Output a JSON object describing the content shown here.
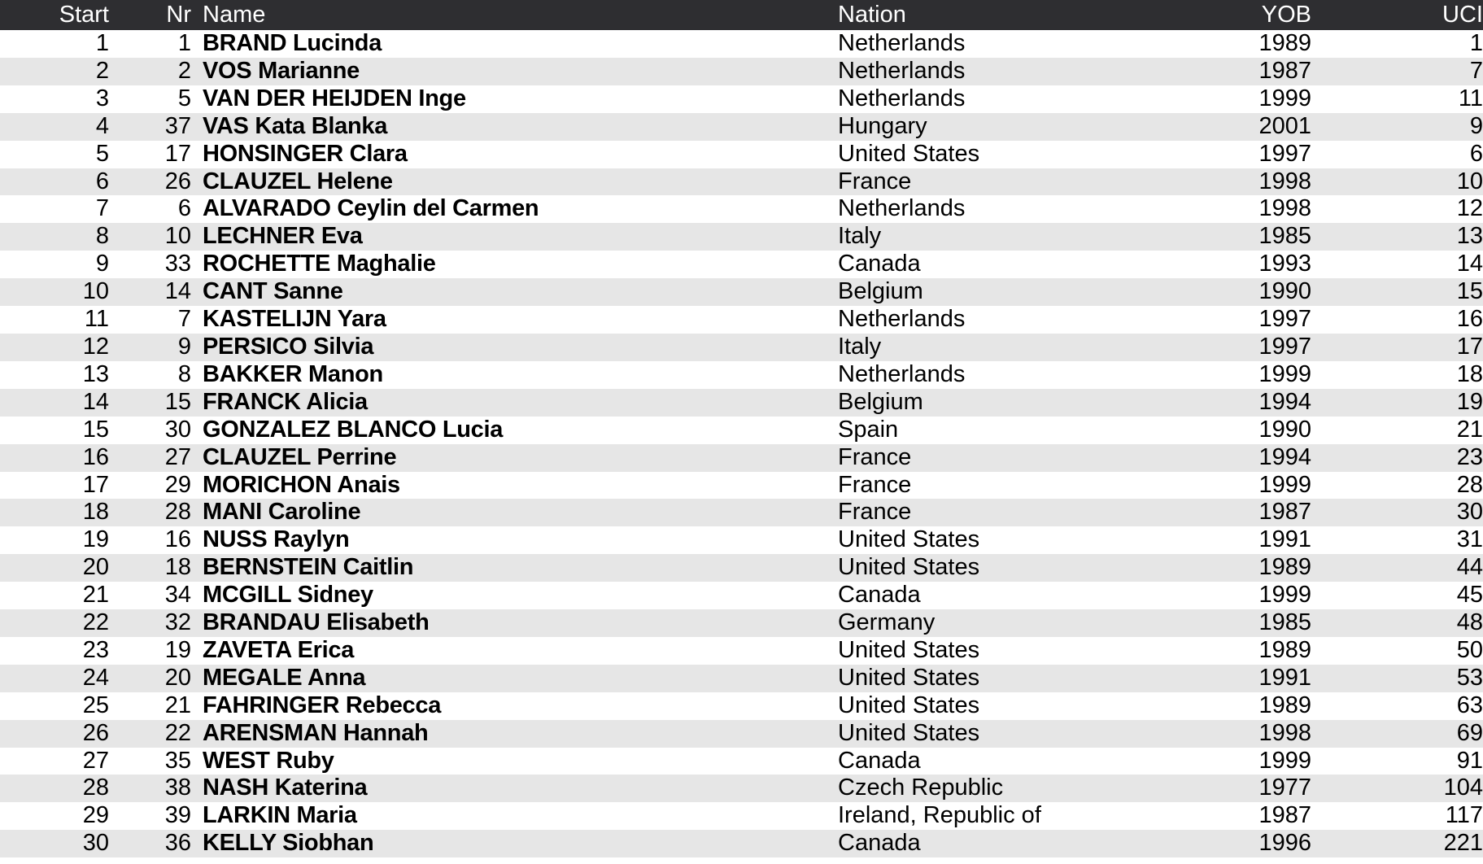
{
  "table": {
    "headers": {
      "start": "Start",
      "nr": "Nr",
      "name": "Name",
      "nation": "Nation",
      "yob": "YOB",
      "uci": "UCI"
    },
    "rows": [
      {
        "start": "1",
        "nr": "1",
        "name": "BRAND Lucinda",
        "nation": "Netherlands",
        "yob": "1989",
        "uci": "1"
      },
      {
        "start": "2",
        "nr": "2",
        "name": "VOS Marianne",
        "nation": "Netherlands",
        "yob": "1987",
        "uci": "7"
      },
      {
        "start": "3",
        "nr": "5",
        "name": "VAN DER HEIJDEN Inge",
        "nation": "Netherlands",
        "yob": "1999",
        "uci": "11"
      },
      {
        "start": "4",
        "nr": "37",
        "name": "VAS Kata Blanka",
        "nation": "Hungary",
        "yob": "2001",
        "uci": "9"
      },
      {
        "start": "5",
        "nr": "17",
        "name": "HONSINGER Clara",
        "nation": "United States",
        "yob": "1997",
        "uci": "6"
      },
      {
        "start": "6",
        "nr": "26",
        "name": "CLAUZEL Helene",
        "nation": "France",
        "yob": "1998",
        "uci": "10"
      },
      {
        "start": "7",
        "nr": "6",
        "name": "ALVARADO Ceylin del Carmen",
        "nation": "Netherlands",
        "yob": "1998",
        "uci": "12"
      },
      {
        "start": "8",
        "nr": "10",
        "name": "LECHNER Eva",
        "nation": "Italy",
        "yob": "1985",
        "uci": "13"
      },
      {
        "start": "9",
        "nr": "33",
        "name": "ROCHETTE Maghalie",
        "nation": "Canada",
        "yob": "1993",
        "uci": "14"
      },
      {
        "start": "10",
        "nr": "14",
        "name": "CANT Sanne",
        "nation": "Belgium",
        "yob": "1990",
        "uci": "15"
      },
      {
        "start": "11",
        "nr": "7",
        "name": "KASTELIJN Yara",
        "nation": "Netherlands",
        "yob": "1997",
        "uci": "16"
      },
      {
        "start": "12",
        "nr": "9",
        "name": "PERSICO Silvia",
        "nation": "Italy",
        "yob": "1997",
        "uci": "17"
      },
      {
        "start": "13",
        "nr": "8",
        "name": "BAKKER Manon",
        "nation": "Netherlands",
        "yob": "1999",
        "uci": "18"
      },
      {
        "start": "14",
        "nr": "15",
        "name": "FRANCK Alicia",
        "nation": "Belgium",
        "yob": "1994",
        "uci": "19"
      },
      {
        "start": "15",
        "nr": "30",
        "name": "GONZALEZ BLANCO Lucia",
        "nation": "Spain",
        "yob": "1990",
        "uci": "21"
      },
      {
        "start": "16",
        "nr": "27",
        "name": "CLAUZEL Perrine",
        "nation": "France",
        "yob": "1994",
        "uci": "23"
      },
      {
        "start": "17",
        "nr": "29",
        "name": "MORICHON Anais",
        "nation": "France",
        "yob": "1999",
        "uci": "28"
      },
      {
        "start": "18",
        "nr": "28",
        "name": "MANI Caroline",
        "nation": "France",
        "yob": "1987",
        "uci": "30"
      },
      {
        "start": "19",
        "nr": "16",
        "name": "NUSS Raylyn",
        "nation": "United States",
        "yob": "1991",
        "uci": "31"
      },
      {
        "start": "20",
        "nr": "18",
        "name": "BERNSTEIN Caitlin",
        "nation": "United States",
        "yob": "1989",
        "uci": "44"
      },
      {
        "start": "21",
        "nr": "34",
        "name": "MCGILL Sidney",
        "nation": "Canada",
        "yob": "1999",
        "uci": "45"
      },
      {
        "start": "22",
        "nr": "32",
        "name": "BRANDAU Elisabeth",
        "nation": "Germany",
        "yob": "1985",
        "uci": "48"
      },
      {
        "start": "23",
        "nr": "19",
        "name": "ZAVETA Erica",
        "nation": "United States",
        "yob": "1989",
        "uci": "50"
      },
      {
        "start": "24",
        "nr": "20",
        "name": "MEGALE Anna",
        "nation": "United States",
        "yob": "1991",
        "uci": "53"
      },
      {
        "start": "25",
        "nr": "21",
        "name": "FAHRINGER Rebecca",
        "nation": "United States",
        "yob": "1989",
        "uci": "63"
      },
      {
        "start": "26",
        "nr": "22",
        "name": "ARENSMAN Hannah",
        "nation": "United States",
        "yob": "1998",
        "uci": "69"
      },
      {
        "start": "27",
        "nr": "35",
        "name": "WEST Ruby",
        "nation": "Canada",
        "yob": "1999",
        "uci": "91"
      },
      {
        "start": "28",
        "nr": "38",
        "name": "NASH Katerina",
        "nation": "Czech Republic",
        "yob": "1977",
        "uci": "104"
      },
      {
        "start": "29",
        "nr": "39",
        "name": "LARKIN Maria",
        "nation": "Ireland, Republic of",
        "yob": "1987",
        "uci": "117"
      },
      {
        "start": "30",
        "nr": "36",
        "name": "KELLY Siobhan",
        "nation": "Canada",
        "yob": "1996",
        "uci": "221"
      }
    ]
  }
}
